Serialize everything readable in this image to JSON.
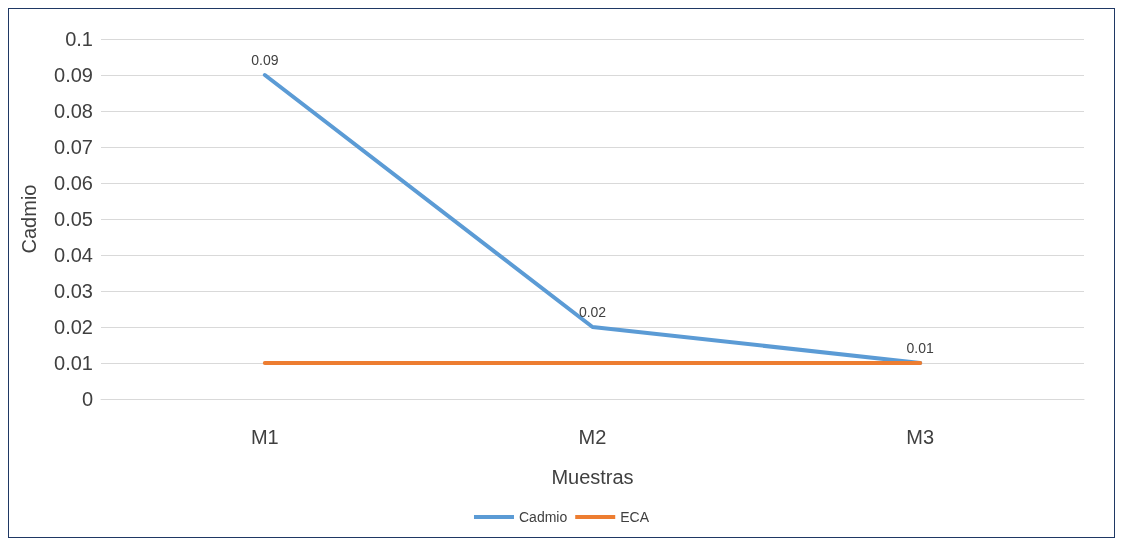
{
  "chart_data": {
    "type": "line",
    "xlabel": "Muestras",
    "ylabel": "Cadmio",
    "categories": [
      "M1",
      "M2",
      "M3"
    ],
    "series": [
      {
        "name": "Cadmio",
        "color": "#5b9bd5",
        "values": [
          0.09,
          0.02,
          0.01
        ],
        "value_labels": [
          "0.09",
          "0.02",
          "0.01"
        ]
      },
      {
        "name": "ECA",
        "color": "#ed7d31",
        "values": [
          0.01,
          0.01,
          0.01
        ]
      }
    ],
    "ylim": [
      0,
      0.1
    ],
    "yticks": [
      0,
      0.01,
      0.02,
      0.03,
      0.04,
      0.05,
      0.06,
      0.07,
      0.08,
      0.09,
      0.1
    ],
    "grid": "y",
    "legend": "bottom",
    "marker": "none",
    "line_style": "solid"
  }
}
